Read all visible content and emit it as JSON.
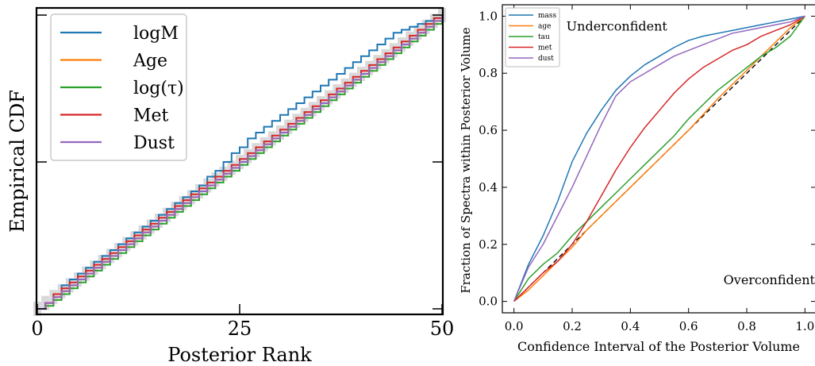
{
  "chart_data": [
    {
      "type": "line",
      "subtype": "step",
      "xlabel": "Posterior Rank",
      "ylabel": "Empirical CDF",
      "xlim": [
        0,
        50
      ],
      "ylim": [
        0,
        1
      ],
      "xticks": [
        0,
        25,
        50
      ],
      "yticks": [
        0,
        0.5,
        1
      ],
      "xtick_labels": [
        "0",
        "25",
        "50"
      ],
      "ytick_labels_shown": false,
      "band": "uniform-expectation confidence band (gray)",
      "legend": {
        "location": "upper-left",
        "frame": true
      },
      "series": [
        {
          "name": "logM",
          "color": "#1f77b4",
          "values": [
            0.0,
            0.02,
            0.05,
            0.08,
            0.1,
            0.12,
            0.14,
            0.16,
            0.18,
            0.2,
            0.22,
            0.24,
            0.26,
            0.28,
            0.3,
            0.32,
            0.34,
            0.36,
            0.38,
            0.4,
            0.42,
            0.45,
            0.47,
            0.5,
            0.53,
            0.55,
            0.58,
            0.6,
            0.62,
            0.64,
            0.66,
            0.68,
            0.7,
            0.72,
            0.74,
            0.76,
            0.78,
            0.8,
            0.82,
            0.84,
            0.86,
            0.88,
            0.9,
            0.92,
            0.94,
            0.95,
            0.96,
            0.97,
            0.98,
            0.99,
            1.0
          ]
        },
        {
          "name": "Age",
          "color": "#ff7f0e",
          "values": [
            0.0,
            0.02,
            0.04,
            0.06,
            0.08,
            0.1,
            0.12,
            0.14,
            0.16,
            0.18,
            0.2,
            0.22,
            0.24,
            0.26,
            0.28,
            0.3,
            0.32,
            0.34,
            0.36,
            0.38,
            0.4,
            0.42,
            0.44,
            0.46,
            0.48,
            0.5,
            0.52,
            0.54,
            0.56,
            0.58,
            0.6,
            0.62,
            0.64,
            0.66,
            0.68,
            0.7,
            0.72,
            0.74,
            0.76,
            0.78,
            0.8,
            0.82,
            0.84,
            0.86,
            0.88,
            0.9,
            0.92,
            0.94,
            0.96,
            0.98,
            1.0
          ]
        },
        {
          "name": "log(τ)",
          "color": "#2ca02c",
          "values": [
            0.0,
            0.01,
            0.03,
            0.05,
            0.07,
            0.09,
            0.11,
            0.13,
            0.15,
            0.17,
            0.19,
            0.21,
            0.23,
            0.25,
            0.27,
            0.29,
            0.31,
            0.33,
            0.35,
            0.37,
            0.39,
            0.41,
            0.43,
            0.45,
            0.47,
            0.49,
            0.51,
            0.53,
            0.55,
            0.57,
            0.59,
            0.61,
            0.63,
            0.65,
            0.67,
            0.69,
            0.71,
            0.73,
            0.75,
            0.77,
            0.79,
            0.81,
            0.83,
            0.85,
            0.87,
            0.89,
            0.91,
            0.93,
            0.95,
            0.97,
            1.0
          ]
        },
        {
          "name": "Met",
          "color": "#d62728",
          "values": [
            0.0,
            0.02,
            0.05,
            0.07,
            0.09,
            0.11,
            0.13,
            0.15,
            0.17,
            0.19,
            0.21,
            0.23,
            0.25,
            0.27,
            0.29,
            0.31,
            0.33,
            0.35,
            0.37,
            0.39,
            0.41,
            0.43,
            0.45,
            0.47,
            0.49,
            0.51,
            0.53,
            0.55,
            0.57,
            0.59,
            0.61,
            0.63,
            0.65,
            0.67,
            0.69,
            0.71,
            0.73,
            0.75,
            0.77,
            0.79,
            0.81,
            0.83,
            0.85,
            0.87,
            0.89,
            0.91,
            0.93,
            0.95,
            0.97,
            0.99,
            1.0
          ]
        },
        {
          "name": "Dust",
          "color": "#9467bd",
          "values": [
            0.0,
            0.02,
            0.04,
            0.06,
            0.08,
            0.1,
            0.12,
            0.14,
            0.16,
            0.18,
            0.2,
            0.22,
            0.24,
            0.26,
            0.28,
            0.3,
            0.32,
            0.34,
            0.36,
            0.38,
            0.4,
            0.42,
            0.44,
            0.46,
            0.48,
            0.5,
            0.52,
            0.54,
            0.56,
            0.58,
            0.6,
            0.62,
            0.64,
            0.66,
            0.68,
            0.7,
            0.72,
            0.74,
            0.76,
            0.78,
            0.8,
            0.82,
            0.84,
            0.86,
            0.88,
            0.9,
            0.92,
            0.94,
            0.96,
            0.98,
            1.0
          ]
        }
      ]
    },
    {
      "type": "line",
      "xlabel": "Confidence Interval of the Posterior Volume",
      "ylabel": "Fraction of Spectra within Posterior Volume",
      "xlim": [
        -0.04,
        1.04
      ],
      "ylim": [
        -0.04,
        1.04
      ],
      "xticks": [
        0.0,
        0.2,
        0.4,
        0.6,
        0.8,
        1.0
      ],
      "yticks": [
        0.0,
        0.2,
        0.4,
        0.6,
        0.8,
        1.0
      ],
      "xtick_labels": [
        "0.0",
        "0.2",
        "0.4",
        "0.6",
        "0.8",
        "1.0"
      ],
      "ytick_labels": [
        "0.0",
        "0.2",
        "0.4",
        "0.6",
        "0.8",
        "1.0"
      ],
      "legend": {
        "location": "upper-left",
        "frame": true
      },
      "annotations": [
        {
          "text": "Underconfident",
          "x": 0.18,
          "y": 0.95
        },
        {
          "text": "Overconfident",
          "x": 0.72,
          "y": 0.06
        }
      ],
      "reference_line": {
        "x": [
          0,
          1
        ],
        "y": [
          0,
          1
        ],
        "style": "dashed",
        "color": "#000000"
      },
      "series": [
        {
          "name": "mass",
          "color": "#1f77b4",
          "x": [
            0.0,
            0.05,
            0.1,
            0.15,
            0.2,
            0.25,
            0.3,
            0.35,
            0.4,
            0.45,
            0.5,
            0.55,
            0.6,
            0.65,
            0.7,
            0.75,
            0.8,
            0.85,
            0.9,
            0.95,
            1.0
          ],
          "y": [
            0.0,
            0.13,
            0.23,
            0.35,
            0.49,
            0.59,
            0.67,
            0.74,
            0.79,
            0.83,
            0.86,
            0.89,
            0.915,
            0.93,
            0.94,
            0.95,
            0.96,
            0.97,
            0.98,
            0.99,
            1.0
          ]
        },
        {
          "name": "age",
          "color": "#ff7f0e",
          "x": [
            0.0,
            0.05,
            0.1,
            0.15,
            0.2,
            0.25,
            0.3,
            0.35,
            0.4,
            0.45,
            0.5,
            0.55,
            0.6,
            0.65,
            0.7,
            0.75,
            0.8,
            0.85,
            0.9,
            0.95,
            1.0
          ],
          "y": [
            0.0,
            0.04,
            0.09,
            0.14,
            0.19,
            0.25,
            0.3,
            0.35,
            0.4,
            0.45,
            0.5,
            0.55,
            0.6,
            0.655,
            0.71,
            0.76,
            0.81,
            0.86,
            0.91,
            0.96,
            1.0
          ]
        },
        {
          "name": "tau",
          "color": "#2ca02c",
          "x": [
            0.0,
            0.05,
            0.1,
            0.15,
            0.2,
            0.25,
            0.3,
            0.35,
            0.4,
            0.45,
            0.5,
            0.55,
            0.6,
            0.65,
            0.7,
            0.75,
            0.8,
            0.85,
            0.9,
            0.95,
            1.0
          ],
          "y": [
            0.0,
            0.08,
            0.13,
            0.17,
            0.23,
            0.28,
            0.33,
            0.38,
            0.43,
            0.48,
            0.53,
            0.58,
            0.64,
            0.69,
            0.74,
            0.78,
            0.82,
            0.86,
            0.89,
            0.93,
            1.0
          ]
        },
        {
          "name": "met",
          "color": "#d62728",
          "x": [
            0.0,
            0.05,
            0.1,
            0.15,
            0.2,
            0.25,
            0.3,
            0.35,
            0.4,
            0.45,
            0.5,
            0.55,
            0.6,
            0.65,
            0.7,
            0.75,
            0.8,
            0.85,
            0.9,
            0.95,
            1.0
          ],
          "y": [
            0.0,
            0.05,
            0.1,
            0.14,
            0.2,
            0.28,
            0.37,
            0.46,
            0.54,
            0.61,
            0.67,
            0.73,
            0.78,
            0.82,
            0.85,
            0.88,
            0.9,
            0.93,
            0.95,
            0.97,
            1.0
          ]
        },
        {
          "name": "dust",
          "color": "#9467bd",
          "x": [
            0.0,
            0.05,
            0.1,
            0.15,
            0.2,
            0.25,
            0.3,
            0.35,
            0.4,
            0.45,
            0.5,
            0.55,
            0.6,
            0.65,
            0.7,
            0.75,
            0.8,
            0.85,
            0.9,
            0.95,
            1.0
          ],
          "y": [
            0.0,
            0.12,
            0.2,
            0.3,
            0.4,
            0.51,
            0.62,
            0.72,
            0.77,
            0.8,
            0.83,
            0.86,
            0.88,
            0.9,
            0.92,
            0.94,
            0.95,
            0.96,
            0.97,
            0.98,
            1.0
          ]
        }
      ]
    }
  ]
}
